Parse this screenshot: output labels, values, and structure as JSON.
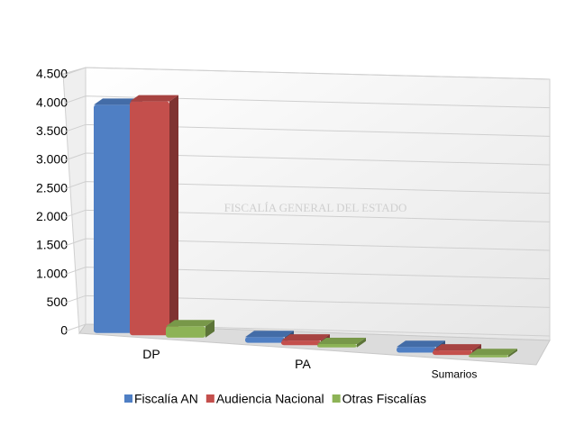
{
  "chart_data": {
    "type": "bar3d",
    "categories": [
      "DP",
      "PA",
      "Sumarios"
    ],
    "series": [
      {
        "name": "Fiscalía AN",
        "color": "#4f7fc4",
        "values": [
          4000,
          100,
          100
        ]
      },
      {
        "name": "Audiencia Nacional",
        "color": "#c44f4c",
        "values": [
          4100,
          80,
          80
        ]
      },
      {
        "name": "Otras Fiscalías",
        "color": "#8db356",
        "values": [
          200,
          60,
          40
        ]
      }
    ],
    "ylim": [
      0,
      4500
    ],
    "yticks": [
      0,
      500,
      {
        "value": 1000,
        "label": "1.000"
      },
      {
        "value": 1500,
        "label": "1.500"
      },
      {
        "value": 2000,
        "label": "2.000"
      },
      {
        "value": 2500,
        "label": "2.500"
      },
      {
        "value": 3000,
        "label": "3.000"
      },
      {
        "value": 3500,
        "label": "3.500"
      },
      {
        "value": 4000,
        "label": "4.000"
      },
      {
        "value": 4500,
        "label": "4.500"
      }
    ],
    "grid": true,
    "legend": "bottom",
    "watermark": "FISCALÍA GENERAL DEL ESTADO"
  }
}
